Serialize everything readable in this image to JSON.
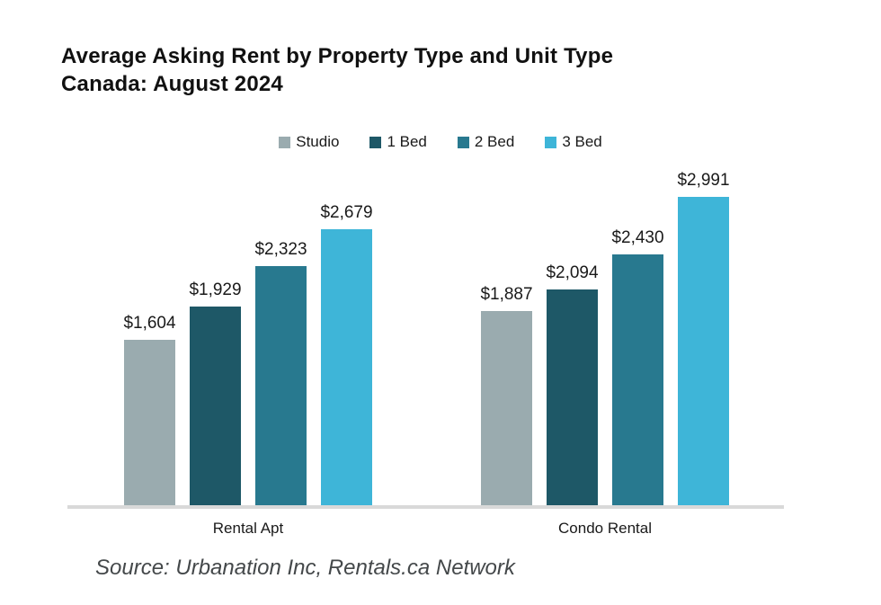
{
  "title": {
    "line1": "Average Asking Rent by Property Type and Unit Type",
    "line2": "Canada: August 2024"
  },
  "source": "Source: Urbanation Inc, Rentals.ca Network",
  "chart_data": {
    "type": "bar",
    "title": "Average Asking Rent by Property Type and Unit Type Canada: August 2024",
    "categories": [
      "Rental Apt",
      "Condo Rental"
    ],
    "series": [
      {
        "name": "Studio",
        "color": "#9AABAF",
        "values": [
          1604,
          1887
        ],
        "labels": [
          "$1,604",
          "$1,887"
        ]
      },
      {
        "name": "1 Bed",
        "color": "#1E5867",
        "values": [
          1929,
          2094
        ],
        "labels": [
          "$1,929",
          "$2,094"
        ]
      },
      {
        "name": "2 Bed",
        "color": "#28798F",
        "values": [
          2323,
          2430
        ],
        "labels": [
          "$2,323",
          "$2,430"
        ]
      },
      {
        "name": "3 Bed",
        "color": "#3EB5D8",
        "values": [
          2679,
          2991
        ],
        "labels": [
          "$2,679",
          "$2,991"
        ]
      }
    ],
    "xlabel": "",
    "ylabel": "",
    "ylim": [
      0,
      3100
    ],
    "grid": false,
    "legend_position": "top",
    "axis_line_color": "#D9D9D9",
    "value_labels_shown": true
  }
}
